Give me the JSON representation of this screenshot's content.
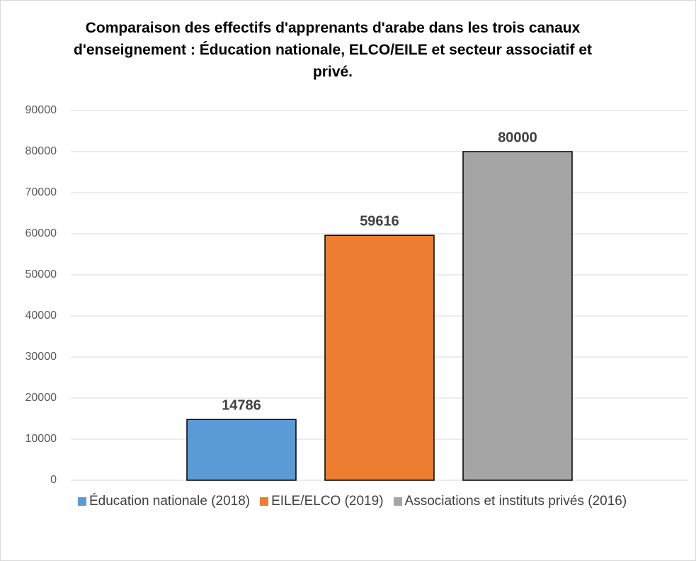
{
  "chart_data": {
    "type": "bar",
    "title": "Comparaison des effectifs d'apprenants d'arabe dans les trois canaux d'enseignement : Éducation nationale, ELCO/EILE et secteur associatif et privé.",
    "categories": [
      null
    ],
    "series": [
      {
        "name": "Éducation nationale (2018)",
        "color": "#5b9bd5",
        "values": [
          14786
        ]
      },
      {
        "name": "EILE/ELCO (2019)",
        "color": "#ed7d31",
        "values": [
          59616
        ]
      },
      {
        "name": "Associations et instituts privés (2016)",
        "color": "#a5a5a5",
        "values": [
          80000
        ]
      }
    ],
    "ylim": [
      0,
      90000
    ],
    "yticks": [
      0,
      10000,
      20000,
      30000,
      40000,
      50000,
      60000,
      70000,
      80000,
      90000
    ],
    "grid": true,
    "legend": "bottom"
  }
}
